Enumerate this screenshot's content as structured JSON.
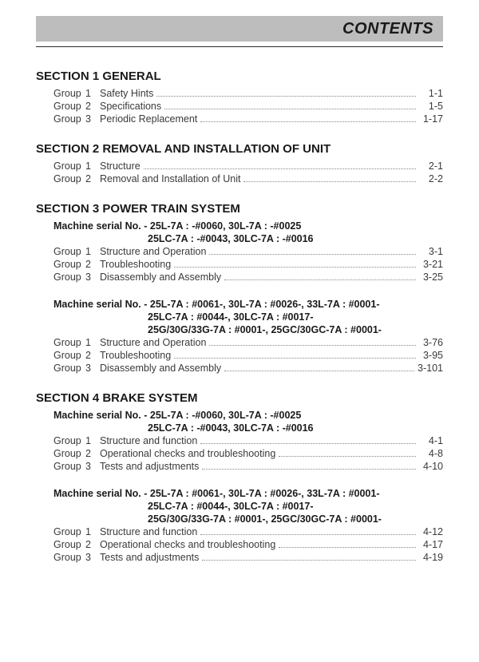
{
  "header": {
    "title": "CONTENTS"
  },
  "sections": [
    {
      "title": "SECTION 1  GENERAL",
      "blocks": [
        {
          "rows": [
            {
              "grp": "Group",
              "num": "1",
              "label": "Safety Hints",
              "pg": "1-1"
            },
            {
              "grp": "Group",
              "num": "2",
              "label": "Specifications",
              "pg": "1-5"
            },
            {
              "grp": "Group",
              "num": "3",
              "label": "Periodic Replacement",
              "pg": "1-17"
            }
          ]
        }
      ]
    },
    {
      "title": "SECTION 2  REMOVAL AND INSTALLATION OF UNIT",
      "blocks": [
        {
          "rows": [
            {
              "grp": "Group",
              "num": "1",
              "label": "Structure",
              "pg": "2-1"
            },
            {
              "grp": "Group",
              "num": "2",
              "label": "Removal and Installation of Unit",
              "pg": "2-2"
            }
          ]
        }
      ]
    },
    {
      "title": "SECTION 3  POWER TRAIN SYSTEM",
      "blocks": [
        {
          "serial": [
            "Machine serial No. - 25L-7A : -#0060, 30L-7A : -#0025",
            "25LC-7A : -#0043, 30LC-7A : -#0016"
          ],
          "rows": [
            {
              "grp": "Group",
              "num": "1",
              "label": "Structure and Operation",
              "pg": "3-1"
            },
            {
              "grp": "Group",
              "num": "2",
              "label": "Troubleshooting",
              "pg": "3-21"
            },
            {
              "grp": "Group",
              "num": "3",
              "label": "Disassembly and Assembly",
              "pg": "3-25"
            }
          ]
        },
        {
          "serial": [
            "Machine serial No. - 25L-7A : #0061-, 30L-7A : #0026-, 33L-7A : #0001-",
            "25LC-7A : #0044-, 30LC-7A : #0017-",
            "25G/30G/33G-7A : #0001-, 25GC/30GC-7A : #0001-"
          ],
          "rows": [
            {
              "grp": "Group",
              "num": "1",
              "label": "Structure and Operation",
              "pg": "3-76"
            },
            {
              "grp": "Group",
              "num": "2",
              "label": "Troubleshooting",
              "pg": "3-95"
            },
            {
              "grp": "Group",
              "num": "3",
              "label": "Disassembly and Assembly",
              "pg": "3-101"
            }
          ]
        }
      ]
    },
    {
      "title": "SECTION 4  BRAKE SYSTEM",
      "blocks": [
        {
          "serial": [
            "Machine serial No. - 25L-7A : -#0060, 30L-7A : -#0025",
            "25LC-7A : -#0043, 30LC-7A : -#0016"
          ],
          "rows": [
            {
              "grp": "Group",
              "num": "1",
              "label": "Structure and function",
              "pg": "4-1"
            },
            {
              "grp": "Group",
              "num": "2",
              "label": "Operational checks and troubleshooting",
              "pg": "4-8"
            },
            {
              "grp": "Group",
              "num": "3",
              "label": "Tests and adjustments",
              "pg": "4-10"
            }
          ]
        },
        {
          "serial": [
            "Machine serial No. - 25L-7A : #0061-, 30L-7A : #0026-, 33L-7A : #0001-",
            "25LC-7A : #0044-, 30LC-7A : #0017-",
            "25G/30G/33G-7A : #0001-, 25GC/30GC-7A : #0001-"
          ],
          "rows": [
            {
              "grp": "Group",
              "num": "1",
              "label": "Structure and function",
              "pg": "4-12"
            },
            {
              "grp": "Group",
              "num": "2",
              "label": "Operational checks and troubleshooting",
              "pg": "4-17"
            },
            {
              "grp": "Group",
              "num": "3",
              "label": "Tests and adjustments",
              "pg": "4-19"
            }
          ]
        }
      ]
    }
  ]
}
